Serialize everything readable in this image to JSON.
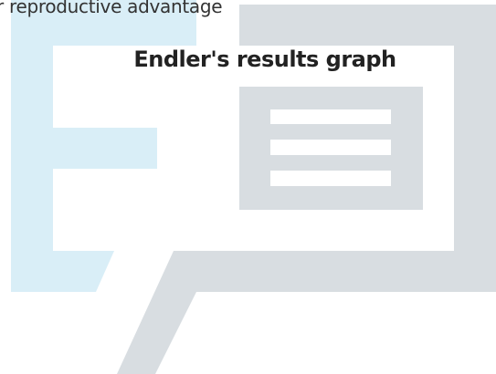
{
  "caption": "r reproductive advantage",
  "title": "Endler's results graph"
}
